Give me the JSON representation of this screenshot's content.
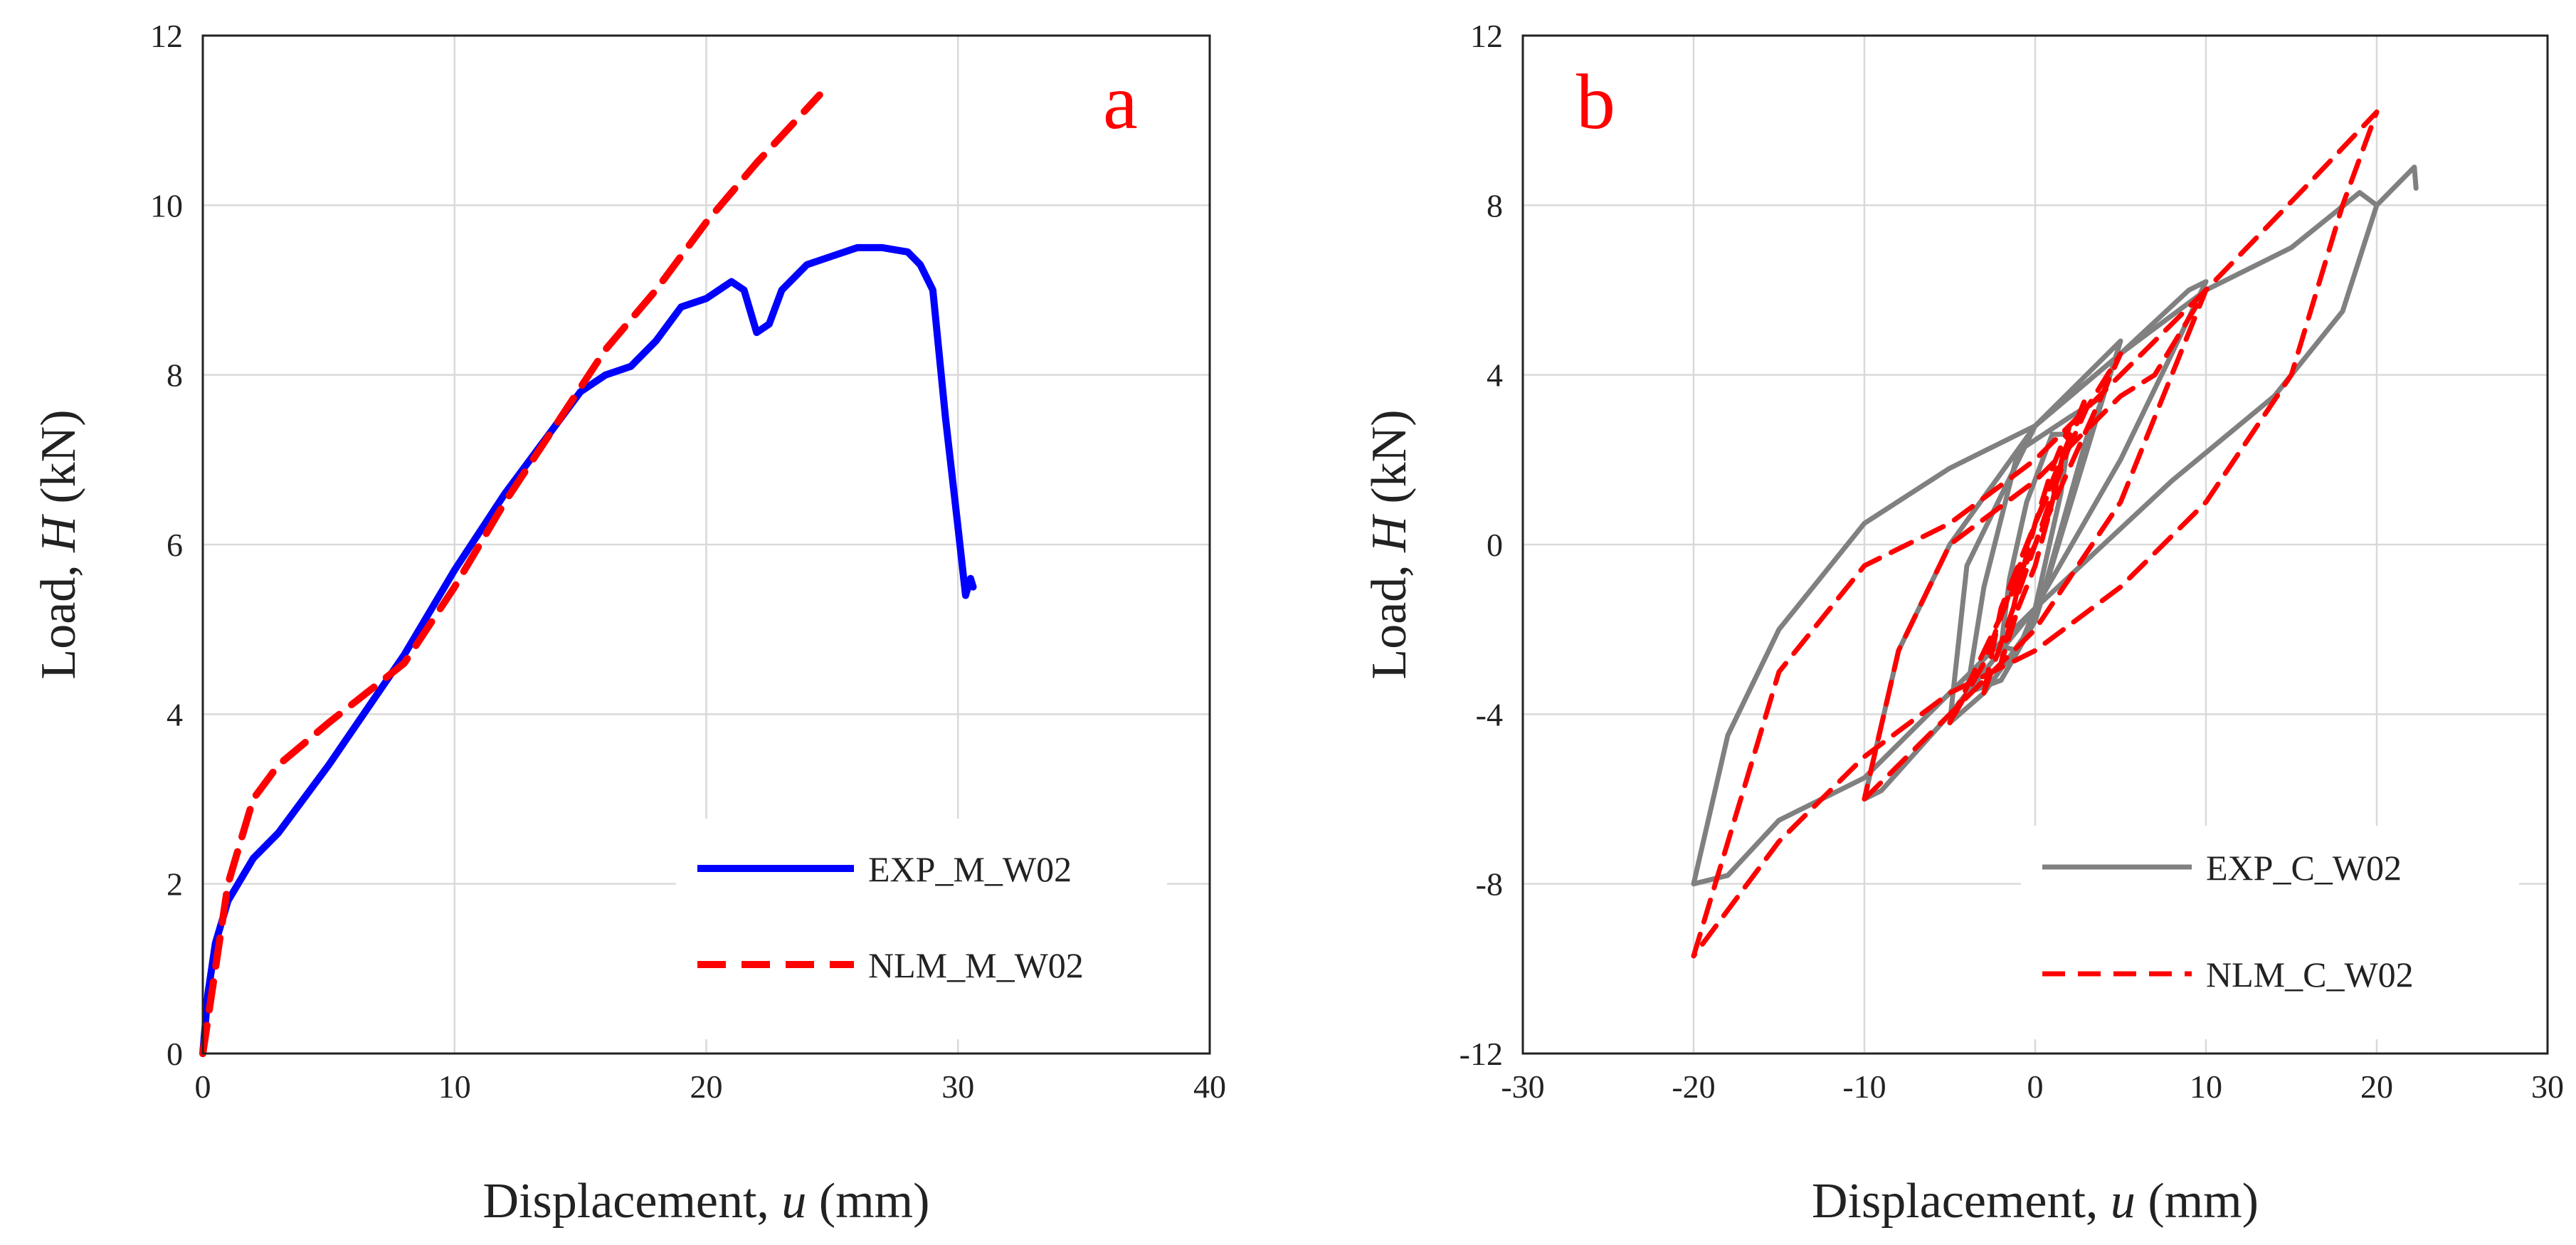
{
  "chart_data": [
    {
      "type": "line",
      "panel_label": "a",
      "xlabel_main": "Displacement, ",
      "xlabel_var": "u",
      "xlabel_unit": " (mm)",
      "ylabel_main": "Load, ",
      "ylabel_var": "H",
      "ylabel_unit": " (kN)",
      "xlim": [
        0,
        40
      ],
      "ylim": [
        0,
        12
      ],
      "xticks": [
        0,
        10,
        20,
        30,
        40
      ],
      "yticks": [
        0,
        2,
        4,
        6,
        8,
        10,
        12
      ],
      "xtick_labels": [
        "0",
        "10",
        "20",
        "30",
        "40"
      ],
      "ytick_labels": [
        "0",
        "2",
        "4",
        "6",
        "8",
        "10",
        "12"
      ],
      "grid": true,
      "legend_position": "bottom-right",
      "series": [
        {
          "name": "EXP_M_W02",
          "color": "#0000ff",
          "style": "solid",
          "x": [
            0,
            0.2,
            0.5,
            1,
            2,
            3,
            5,
            8,
            10,
            12,
            14,
            15,
            16,
            17,
            18,
            19,
            20,
            21,
            21.5,
            22,
            22.5,
            23,
            24,
            25,
            26,
            27,
            28,
            28.5,
            29,
            29.5,
            30,
            30.3,
            30.5,
            30.6
          ],
          "y": [
            0,
            0.7,
            1.3,
            1.8,
            2.3,
            2.6,
            3.4,
            4.7,
            5.7,
            6.6,
            7.4,
            7.8,
            8.0,
            8.1,
            8.4,
            8.8,
            8.9,
            9.1,
            9.0,
            8.5,
            8.6,
            9.0,
            9.3,
            9.4,
            9.5,
            9.5,
            9.45,
            9.3,
            9.0,
            7.5,
            6.2,
            5.4,
            5.6,
            5.5
          ]
        },
        {
          "name": "NLM_M_W02",
          "color": "#ff0000",
          "style": "dashed",
          "x": [
            0,
            0.5,
            1,
            2,
            3,
            5,
            8,
            10,
            12,
            14,
            16,
            18,
            20,
            22,
            24.5
          ],
          "y": [
            0,
            1.0,
            2.0,
            3.0,
            3.4,
            3.9,
            4.6,
            5.5,
            6.5,
            7.4,
            8.3,
            9.0,
            9.8,
            10.5,
            11.3
          ]
        }
      ]
    },
    {
      "type": "line",
      "panel_label": "b",
      "xlabel_main": "Displacement, ",
      "xlabel_var": "u",
      "xlabel_unit": " (mm)",
      "ylabel_main": "Load, ",
      "ylabel_var": "H",
      "ylabel_unit": " (kN)",
      "xlim": [
        -30,
        30
      ],
      "ylim": [
        -12,
        12
      ],
      "xticks": [
        -30,
        -20,
        -10,
        0,
        10,
        20,
        30
      ],
      "yticks": [
        -12,
        -8,
        -4,
        0,
        4,
        8,
        12
      ],
      "xtick_labels": [
        "-30",
        "-20",
        "-10",
        "0",
        "10",
        "20",
        "30"
      ],
      "ytick_labels": [
        "-12",
        "-8",
        "-4",
        "0",
        "4",
        "8",
        "12"
      ],
      "grid": true,
      "legend_position": "bottom-right",
      "series": [
        {
          "name": "EXP_C_W02",
          "color": "#808080",
          "style": "solid",
          "loops": [
            {
              "x": [
                0,
                1.5,
                2,
                1,
                -0.5,
                -1.5,
                -2,
                -1,
                0
              ],
              "y": [
                -1.5,
                1.2,
                2.6,
                2.6,
                1.0,
                -0.8,
                -2.4,
                -2.5,
                -1.5
              ]
            },
            {
              "x": [
                0,
                3,
                4,
                2,
                -1,
                -3,
                -4,
                -2,
                0
              ],
              "y": [
                -1.8,
                2.5,
                3.5,
                3.0,
                2.2,
                -1.0,
                -3.5,
                -3.2,
                -1.8
              ]
            },
            {
              "x": [
                0,
                4,
                5,
                3,
                0,
                -4,
                -5,
                -3,
                0
              ],
              "y": [
                -1.8,
                3.5,
                4.8,
                4.0,
                2.8,
                -0.5,
                -4.2,
                -3.5,
                -1.8
              ]
            },
            {
              "x": [
                0,
                5,
                8,
                10,
                9,
                5,
                0,
                -5,
                -8,
                -10,
                -9,
                -5,
                0
              ],
              "y": [
                -1.5,
                2.0,
                4.5,
                6.2,
                6.0,
                4.5,
                2.8,
                0,
                -2.5,
                -6.0,
                -5.8,
                -4.0,
                -1.5
              ]
            },
            {
              "x": [
                0,
                8,
                14,
                18,
                20,
                19,
                15,
                10,
                5,
                0,
                -5,
                -10,
                -15,
                -18,
                -20,
                -18,
                -15,
                -10,
                -5,
                0
              ],
              "y": [
                -1.5,
                1.5,
                3.5,
                5.5,
                8.0,
                8.3,
                7.0,
                6.0,
                4.5,
                2.8,
                1.8,
                0.5,
                -2.0,
                -4.5,
                -8.0,
                -7.8,
                -6.5,
                -5.5,
                -3.5,
                -1.5
              ]
            },
            {
              "x": [
                20,
                22.2,
                22.3
              ],
              "y": [
                8.0,
                8.9,
                8.4
              ]
            }
          ]
        },
        {
          "name": "NLM_C_W02",
          "color": "#ff0000",
          "style": "dashed",
          "loops": [
            {
              "x": [
                -1,
                0,
                1,
                2,
                1,
                0,
                -1,
                -2,
                -1
              ],
              "y": [
                -1.5,
                -0.5,
                1.0,
                2.8,
                1.8,
                0.5,
                -1.0,
                -2.8,
                -1.5
              ]
            },
            {
              "x": [
                -3,
                0,
                3,
                2,
                0,
                -2,
                -3
              ],
              "y": [
                -3.5,
                0,
                3.5,
                2.5,
                0.5,
                -1.5,
                -3.5
              ]
            },
            {
              "x": [
                -5,
                0,
                5,
                3,
                0,
                -3,
                -5
              ],
              "y": [
                -4.2,
                0,
                4.5,
                3.2,
                0.5,
                -2.8,
                -4.2
              ]
            },
            {
              "x": [
                -10,
                -5,
                0,
                5,
                10,
                7,
                5,
                0,
                -5,
                -8,
                -10
              ],
              "y": [
                -6.0,
                -4.0,
                -2.0,
                1.0,
                6.0,
                4.0,
                3.5,
                1.5,
                0,
                -2.5,
                -6.0
              ]
            },
            {
              "x": [
                -20,
                -15,
                -10,
                -5,
                0,
                10,
                16,
                20,
                18,
                15,
                10,
                5,
                0,
                -5,
                -10,
                -15,
                -20
              ],
              "y": [
                -9.7,
                -3.0,
                -0.5,
                0.5,
                2.0,
                6.0,
                8.5,
                10.2,
                8.0,
                4.0,
                1.0,
                -1.0,
                -2.5,
                -3.5,
                -5.0,
                -7.0,
                -9.7
              ]
            }
          ]
        }
      ]
    }
  ]
}
